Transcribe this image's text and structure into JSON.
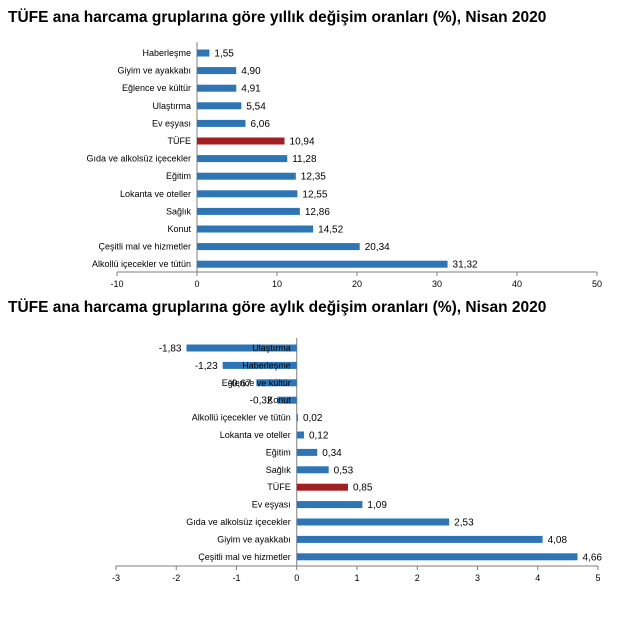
{
  "chart_data": [
    {
      "type": "bar",
      "orientation": "horizontal",
      "title": "TÜFE ana harcama gruplarına göre yıllık değişim oranları (%), Nisan 2020",
      "xlabel": "",
      "ylabel": "",
      "xlim": [
        -10,
        50
      ],
      "xticks": [
        -10,
        0,
        10,
        20,
        30,
        40,
        50
      ],
      "grid": false,
      "categories": [
        "Haberleşme",
        "Giyim ve ayakkabı",
        "Eğlence ve kültür",
        "Ulaştırma",
        "Ev eşyası",
        "TÜFE",
        "Gıda ve alkolsüz içecekler",
        "Eğitim",
        "Lokanta ve oteller",
        "Sağlık",
        "Konut",
        "Çeşitli mal ve hizmetler",
        "Alkollü içecekler ve tütün"
      ],
      "values": [
        1.55,
        4.9,
        4.91,
        5.54,
        6.06,
        10.94,
        11.28,
        12.35,
        12.55,
        12.86,
        14.52,
        20.34,
        31.32
      ],
      "value_labels": [
        "1,55",
        "4,90",
        "4,91",
        "5,54",
        "6,06",
        "10,94",
        "11,28",
        "12,35",
        "12,55",
        "12,86",
        "14,52",
        "20,34",
        "31,32"
      ],
      "colors": {
        "default": "#2e75b6",
        "highlight": "#a31f22"
      },
      "highlight_category": "TÜFE"
    },
    {
      "type": "bar",
      "orientation": "horizontal",
      "title": "TÜFE ana harcama gruplarına göre aylık değişim oranları (%), Nisan 2020",
      "xlabel": "",
      "ylabel": "",
      "xlim": [
        -3,
        5
      ],
      "xticks": [
        -3,
        -2,
        -1,
        0,
        1,
        2,
        3,
        4,
        5
      ],
      "grid": false,
      "categories": [
        "Ulaştırma",
        "Haberleşme",
        "Eğlence ve kültür",
        "Konut",
        "Alkollü içecekler ve tütün",
        "Lokanta ve oteller",
        "Eğitim",
        "Sağlık",
        "TÜFE",
        "Ev eşyası",
        "Gıda ve alkolsüz içecekler",
        "Giyim ve ayakkabı",
        "Çeşitli mal ve hizmetler"
      ],
      "values": [
        -1.83,
        -1.23,
        -0.67,
        -0.32,
        0.02,
        0.12,
        0.34,
        0.53,
        0.85,
        1.09,
        2.53,
        4.08,
        4.66
      ],
      "value_labels": [
        "-1,83",
        "-1,23",
        "-0,67",
        "-0,32",
        "0,02",
        "0,12",
        "0,34",
        "0,53",
        "0,85",
        "1,09",
        "2,53",
        "4,08",
        "4,66"
      ],
      "colors": {
        "default": "#2e75b6",
        "highlight": "#a31f22"
      },
      "highlight_category": "TÜFE"
    }
  ]
}
